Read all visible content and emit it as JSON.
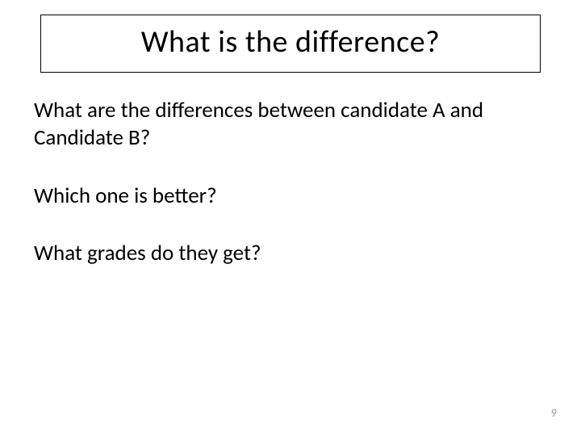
{
  "slide": {
    "title": "What is the difference?",
    "paragraphs": [
      "What are the differences between candidate A and Candidate B?",
      "Which one is better?",
      "What grades do they get?"
    ],
    "page_number": "9"
  },
  "style": {
    "background_color": "#ffffff",
    "text_color": "#000000",
    "page_number_color": "#999999",
    "title_border_color": "#000000",
    "title_fontsize": 38,
    "body_fontsize": 27,
    "page_number_fontsize": 14,
    "font_family": "Calibri"
  }
}
